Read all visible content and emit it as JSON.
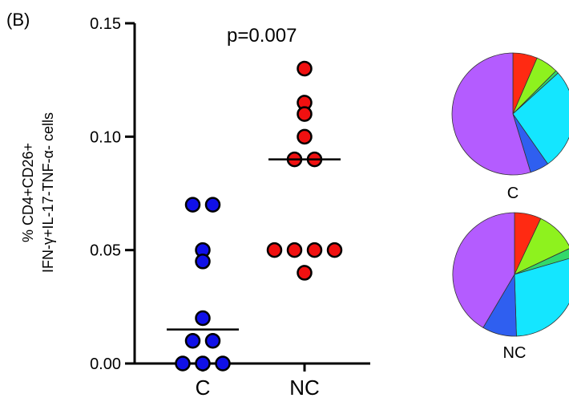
{
  "panel_label": "(B)",
  "colors": {
    "group_C": "#1010e8",
    "group_NC": "#f01010",
    "pie_slices": [
      "#ff2a12",
      "#8ef21e",
      "#32d86a",
      "#14e6ff",
      "#2f5ff0",
      "#b45cff"
    ]
  },
  "chart_data": [
    {
      "type": "scatter",
      "title": "",
      "ylabel": "% CD4+CD26+ IFN-γ+IL-17-TNF-α- cells",
      "ylabel_lines": [
        "% CD4+CD26+",
        "IFN-γ+IL-17-TNF-α- cells"
      ],
      "ylim": [
        0,
        0.15
      ],
      "yticks": [
        0.0,
        0.05,
        0.1,
        0.15
      ],
      "ytick_labels": [
        "0.00",
        "0.05",
        "0.10",
        "0.15"
      ],
      "categories": [
        "C",
        "NC"
      ],
      "annotation": "p=0.007",
      "series": [
        {
          "name": "C",
          "values": [
            0.07,
            0.07,
            0.05,
            0.045,
            0.02,
            0.01,
            0.01,
            0.0,
            0.0,
            0.0
          ],
          "median": 0.015
        },
        {
          "name": "NC",
          "values": [
            0.13,
            0.115,
            0.11,
            0.1,
            0.09,
            0.09,
            0.05,
            0.05,
            0.05,
            0.05,
            0.04
          ],
          "median": 0.09
        }
      ]
    },
    {
      "type": "pie",
      "label": "C",
      "values": [
        6.5,
        6.0,
        0.8,
        27.0,
        5.0,
        54.7
      ]
    },
    {
      "type": "pie",
      "label": "NC",
      "values": [
        7.0,
        11.0,
        2.5,
        29.0,
        9.0,
        41.5
      ]
    }
  ]
}
